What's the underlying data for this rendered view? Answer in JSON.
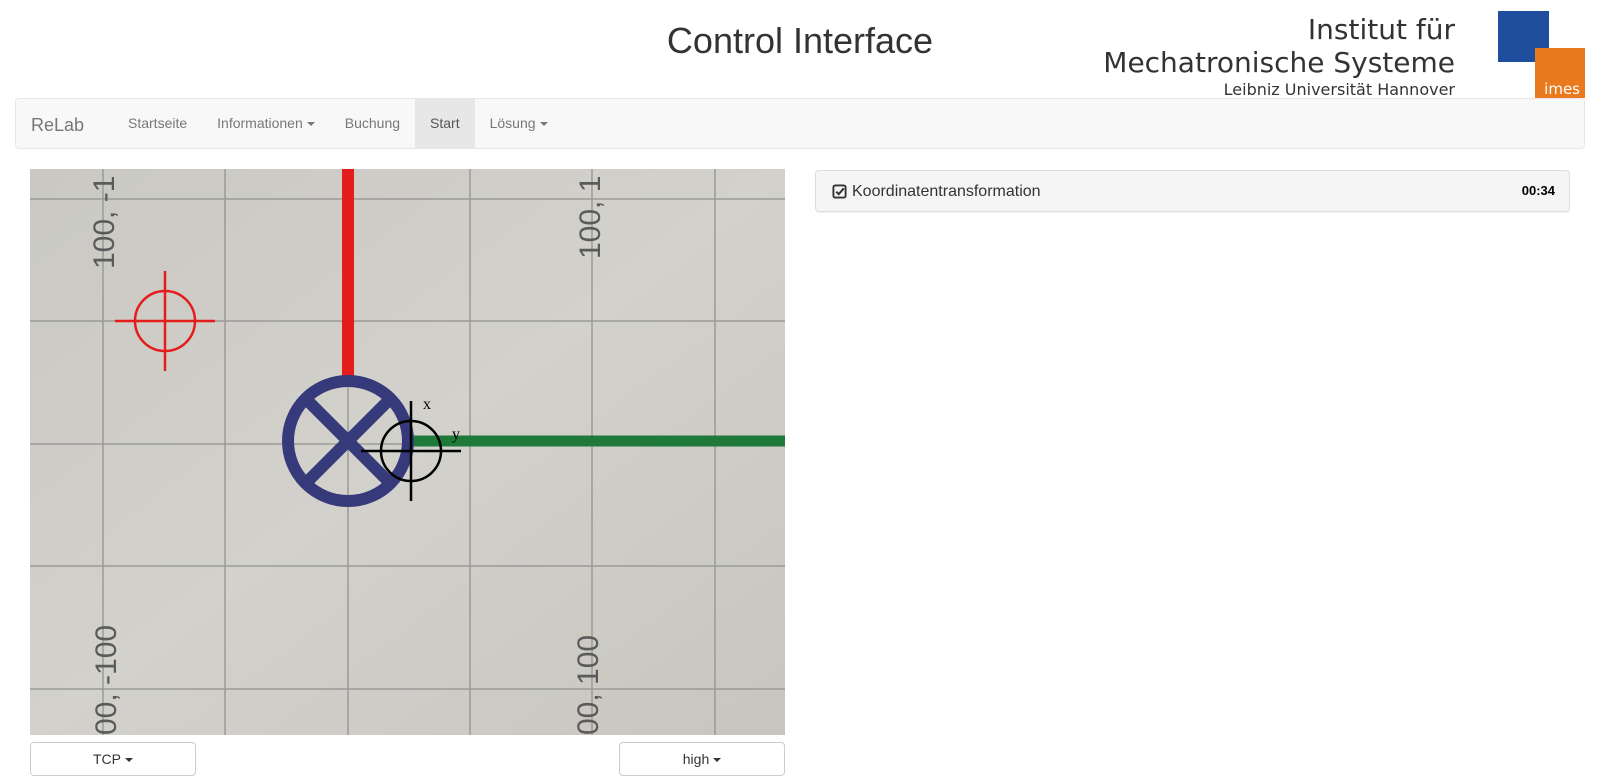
{
  "header": {
    "title": "Control Interface",
    "logo": {
      "line1": "Institut für",
      "line2": "Mechatronische Systeme",
      "line3": "Leibniz Universität Hannover",
      "badge": "imes",
      "colors": {
        "blue": "#1f4e9e",
        "orange": "#e97a1d"
      }
    }
  },
  "navbar": {
    "brand": "ReLab",
    "items": [
      {
        "label": "Startseite",
        "dropdown": false,
        "active": false
      },
      {
        "label": "Informationen",
        "dropdown": true,
        "active": false
      },
      {
        "label": "Buchung",
        "dropdown": false,
        "active": false
      },
      {
        "label": "Start",
        "dropdown": false,
        "active": true
      },
      {
        "label": "Lösung",
        "dropdown": true,
        "active": false
      }
    ]
  },
  "camera": {
    "grid_labels": [
      "100, -1",
      "100, 1",
      "00, -100",
      "00, 100"
    ],
    "crosshair_axis_labels": {
      "x": "x",
      "y": "y"
    },
    "colors": {
      "target": "#e51c1c",
      "x_axis": "#e51c1c",
      "y_axis": "#1f7a3a",
      "marker": "#363a7a"
    }
  },
  "controls": {
    "left_dropdown": "TCP",
    "right_dropdown": "high"
  },
  "task_panel": {
    "icon": "check-square-icon",
    "title": "Koordinatentransformation",
    "timer": "00:34"
  }
}
